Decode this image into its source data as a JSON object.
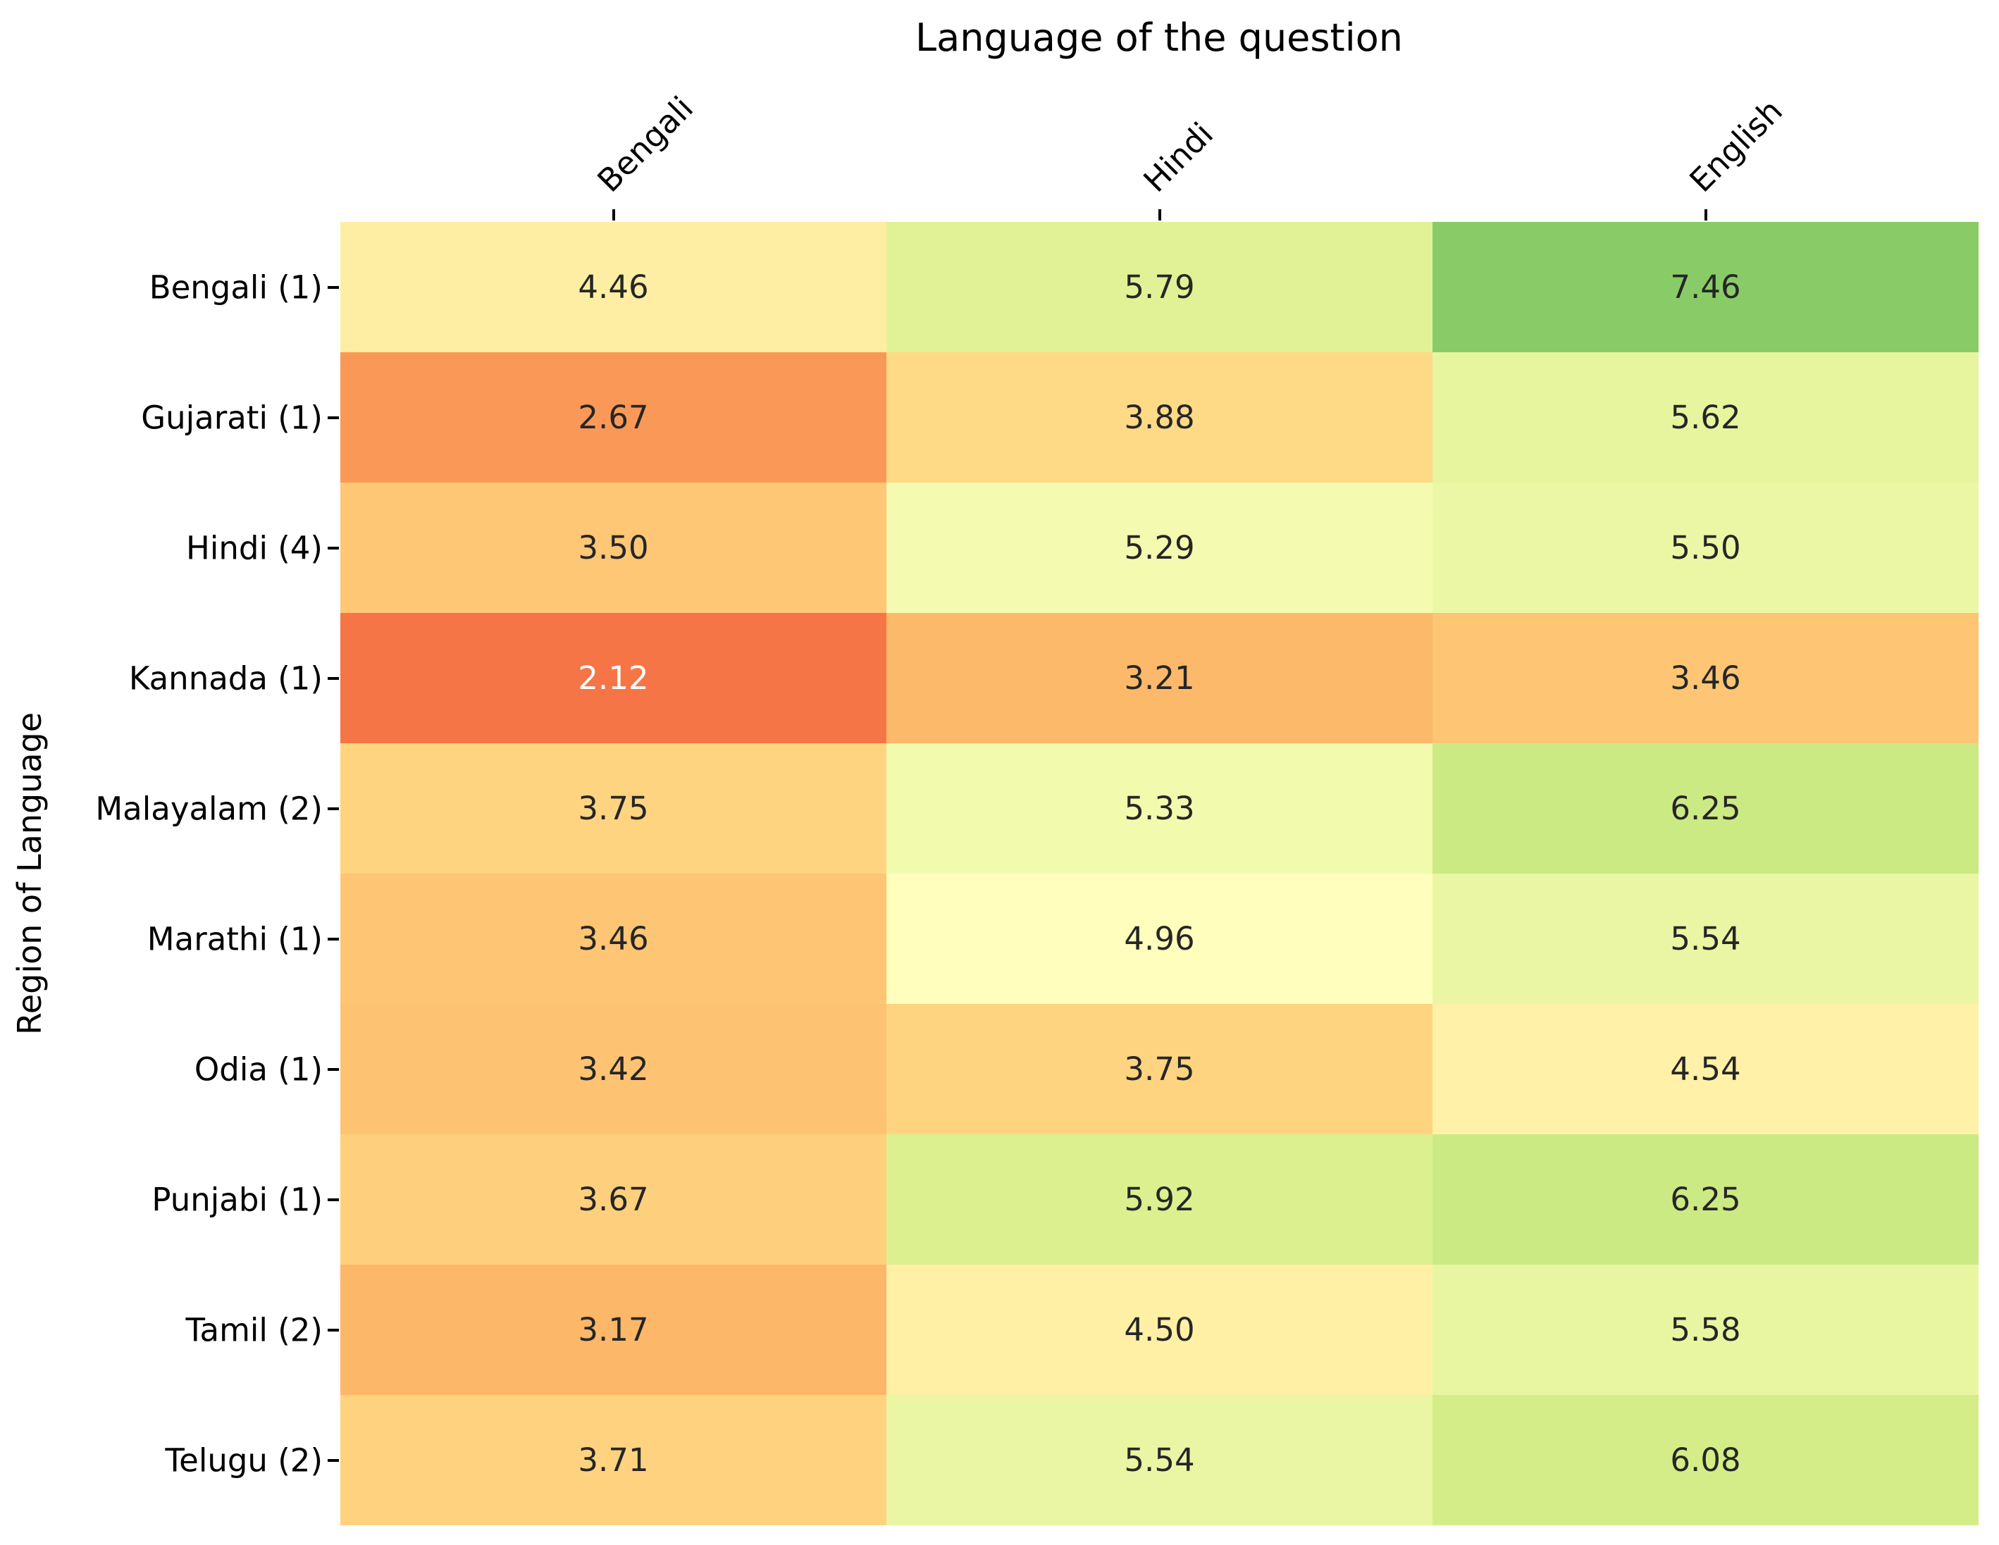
{
  "chart_data": {
    "type": "heatmap",
    "title": "Language of the question",
    "ylabel": "Region of Language",
    "x_categories": [
      "Bengali",
      "Hindi",
      "English"
    ],
    "y_categories": [
      "Bengali (1)",
      "Gujarati (1)",
      "Hindi (4)",
      "Kannada (1)",
      "Malayalam (2)",
      "Marathi (1)",
      "Odia (1)",
      "Punjabi (1)",
      "Tamil (2)",
      "Telugu (2)"
    ],
    "values": [
      [
        4.46,
        5.79,
        7.46
      ],
      [
        2.67,
        3.88,
        5.62
      ],
      [
        3.5,
        5.29,
        5.5
      ],
      [
        2.12,
        3.21,
        3.46
      ],
      [
        3.75,
        5.33,
        6.25
      ],
      [
        3.46,
        4.96,
        5.54
      ],
      [
        3.42,
        3.75,
        4.54
      ],
      [
        3.67,
        5.92,
        6.25
      ],
      [
        3.17,
        4.5,
        5.58
      ],
      [
        3.71,
        5.54,
        6.08
      ]
    ],
    "value_format": ".2f",
    "colormap": "RdYlGn",
    "vmin": 0,
    "vmax": 10,
    "colormap_anchors": [
      "#a50026",
      "#d73027",
      "#f46d43",
      "#fdae61",
      "#fee08b",
      "#ffffbf",
      "#d9ef8b",
      "#a6d96a",
      "#66bd63",
      "#1a9850",
      "#006837"
    ],
    "annotation_text_dark": "#262626",
    "annotation_text_light": "#ffffff",
    "grid": false,
    "legend": "none"
  }
}
